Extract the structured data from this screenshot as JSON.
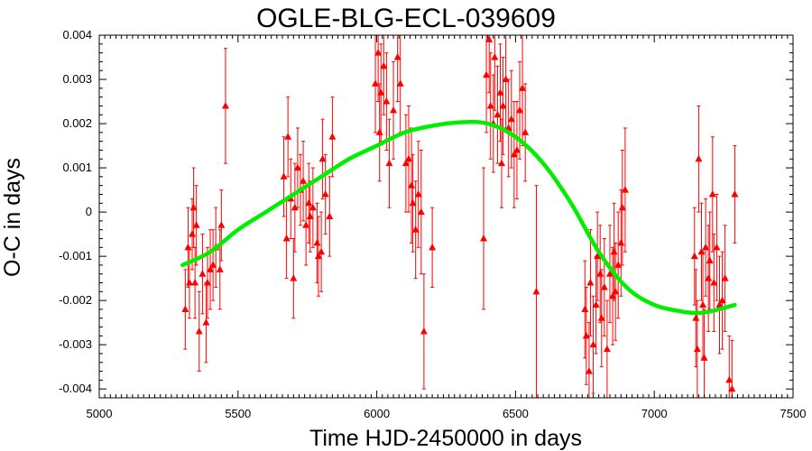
{
  "chart_data": {
    "type": "scatter",
    "title": "OGLE-BLG-ECL-039609",
    "xlabel": "Time HJD-2450000 in days",
    "ylabel": "O-C in days",
    "xlim": [
      5000,
      7500
    ],
    "ylim": [
      -0.0042,
      0.004
    ],
    "x_ticks": [
      5000,
      5500,
      6000,
      6500,
      7000,
      7500
    ],
    "y_ticks": [
      0.004,
      0.003,
      0.002,
      0.001,
      0,
      -0.001,
      -0.002,
      -0.003,
      -0.004
    ],
    "x_tick_labels": [
      "5000",
      "5500",
      "6000",
      "6500",
      "7000",
      "7500"
    ],
    "y_tick_labels": [
      "0.004",
      "0.003",
      "0.002",
      "0.001",
      "0",
      "-0.001",
      "-0.002",
      "-0.003",
      "-0.004"
    ],
    "grid": false,
    "colors": {
      "points": "#ff0000",
      "fit": "#00ee00",
      "axes": "#000000"
    },
    "series": [
      {
        "type": "scatter_errorbars",
        "points": [
          {
            "x": 5310,
            "y": -0.0022,
            "err": 0.0009
          },
          {
            "x": 5320,
            "y": -0.0008,
            "err": 0.0009
          },
          {
            "x": 5325,
            "y": -0.0016,
            "err": 0.0008
          },
          {
            "x": 5335,
            "y": -0.0005,
            "err": 0.0008
          },
          {
            "x": 5340,
            "y": 0.0001,
            "err": 0.0009
          },
          {
            "x": 5345,
            "y": -0.0016,
            "err": 0.0008
          },
          {
            "x": 5350,
            "y": -0.0003,
            "err": 0.0009
          },
          {
            "x": 5360,
            "y": -0.0027,
            "err": 0.0009
          },
          {
            "x": 5372,
            "y": -0.0014,
            "err": 0.0009
          },
          {
            "x": 5385,
            "y": -0.0025,
            "err": 0.0009
          },
          {
            "x": 5390,
            "y": -0.0016,
            "err": 0.0008
          },
          {
            "x": 5400,
            "y": -0.0013,
            "err": 0.0009
          },
          {
            "x": 5410,
            "y": -0.0012,
            "err": 0.0008
          },
          {
            "x": 5420,
            "y": -0.0008,
            "err": 0.0009
          },
          {
            "x": 5435,
            "y": -0.0013,
            "err": 0.0009
          },
          {
            "x": 5440,
            "y": -0.0003,
            "err": 0.0008
          },
          {
            "x": 5455,
            "y": 0.0024,
            "err": 0.0013
          },
          {
            "x": 5665,
            "y": 0.0008,
            "err": 0.0009
          },
          {
            "x": 5675,
            "y": -0.0006,
            "err": 0.0009
          },
          {
            "x": 5680,
            "y": 0.0017,
            "err": 0.0009
          },
          {
            "x": 5690,
            "y": 0.0003,
            "err": 0.0009
          },
          {
            "x": 5700,
            "y": -0.0015,
            "err": 0.0009
          },
          {
            "x": 5705,
            "y": 0.0001,
            "err": 0.001
          },
          {
            "x": 5715,
            "y": 0.001,
            "err": 0.0009
          },
          {
            "x": 5725,
            "y": 0.0005,
            "err": 0.0008
          },
          {
            "x": 5735,
            "y": 0.0007,
            "err": 0.0009
          },
          {
            "x": 5745,
            "y": -0.0003,
            "err": 0.0009
          },
          {
            "x": 5755,
            "y": 0.0002,
            "err": 0.0009
          },
          {
            "x": 5760,
            "y": -0.0001,
            "err": 0.0008
          },
          {
            "x": 5770,
            "y": 0.0001,
            "err": 0.0009
          },
          {
            "x": 5785,
            "y": -0.0007,
            "err": 0.0009
          },
          {
            "x": 5790,
            "y": -0.001,
            "err": 0.0009
          },
          {
            "x": 5800,
            "y": -0.0009,
            "err": 0.0009
          },
          {
            "x": 5805,
            "y": 0.0012,
            "err": 0.0009
          },
          {
            "x": 5815,
            "y": 0.0004,
            "err": 0.0009
          },
          {
            "x": 5830,
            "y": -0.0001,
            "err": 0.0009
          },
          {
            "x": 5840,
            "y": 0.0017,
            "err": 0.0009
          },
          {
            "x": 5995,
            "y": 0.0029,
            "err": 0.0011
          },
          {
            "x": 6005,
            "y": 0.0036,
            "err": 0.0011
          },
          {
            "x": 6010,
            "y": 0.0018,
            "err": 0.0011
          },
          {
            "x": 6015,
            "y": 0.0027,
            "err": 0.0011
          },
          {
            "x": 6025,
            "y": 0.0033,
            "err": 0.0011
          },
          {
            "x": 6035,
            "y": 0.0025,
            "err": 0.0011
          },
          {
            "x": 6045,
            "y": 0.0011,
            "err": 0.001
          },
          {
            "x": 6060,
            "y": 0.0023,
            "err": 0.0011
          },
          {
            "x": 6075,
            "y": 0.0035,
            "err": 0.001
          },
          {
            "x": 6085,
            "y": 0.0029,
            "err": 0.0011
          },
          {
            "x": 6105,
            "y": 0.0011,
            "err": 0.0011
          },
          {
            "x": 6115,
            "y": 0.0012,
            "err": 0.0012
          },
          {
            "x": 6125,
            "y": 0.0006,
            "err": 0.0013
          },
          {
            "x": 6130,
            "y": 0.0002,
            "err": 0.0011
          },
          {
            "x": 6140,
            "y": -0.0004,
            "err": 0.0011
          },
          {
            "x": 6150,
            "y": 0.0004,
            "err": 0.0012
          },
          {
            "x": 6160,
            "y": 0.0,
            "err": 0.0014
          },
          {
            "x": 6170,
            "y": -0.0027,
            "err": 0.0013
          },
          {
            "x": 6200,
            "y": -0.0008,
            "err": 0.0009
          },
          {
            "x": 6385,
            "y": -0.0006,
            "err": 0.0016
          },
          {
            "x": 6395,
            "y": 0.0031,
            "err": 0.0013
          },
          {
            "x": 6405,
            "y": 0.0039,
            "err": 0.0012
          },
          {
            "x": 6410,
            "y": 0.0024,
            "err": 0.0012
          },
          {
            "x": 6420,
            "y": 0.002,
            "err": 0.0011
          },
          {
            "x": 6425,
            "y": 0.0035,
            "err": 0.0012
          },
          {
            "x": 6435,
            "y": 0.0022,
            "err": 0.0011
          },
          {
            "x": 6445,
            "y": 0.0027,
            "err": 0.0011
          },
          {
            "x": 6450,
            "y": 0.0011,
            "err": 0.001
          },
          {
            "x": 6455,
            "y": 0.0024,
            "err": 0.0011
          },
          {
            "x": 6465,
            "y": 0.003,
            "err": 0.0011
          },
          {
            "x": 6475,
            "y": 0.0019,
            "err": 0.0011
          },
          {
            "x": 6485,
            "y": 0.0021,
            "err": 0.0011
          },
          {
            "x": 6495,
            "y": 0.0013,
            "err": 0.0012
          },
          {
            "x": 6505,
            "y": 0.0014,
            "err": 0.0011
          },
          {
            "x": 6515,
            "y": 0.0023,
            "err": 0.0011
          },
          {
            "x": 6525,
            "y": 0.0028,
            "err": 0.0013
          },
          {
            "x": 6535,
            "y": 0.0018,
            "err": 0.0011
          },
          {
            "x": 6575,
            "y": -0.0018,
            "err": 0.0024
          },
          {
            "x": 6750,
            "y": -0.0022,
            "err": 0.0011
          },
          {
            "x": 6755,
            "y": -0.0028,
            "err": 0.0011
          },
          {
            "x": 6765,
            "y": -0.0036,
            "err": 0.0011
          },
          {
            "x": 6770,
            "y": -0.0016,
            "err": 0.0012
          },
          {
            "x": 6780,
            "y": -0.003,
            "err": 0.0011
          },
          {
            "x": 6790,
            "y": -0.0021,
            "err": 0.0011
          },
          {
            "x": 6795,
            "y": -0.001,
            "err": 0.001
          },
          {
            "x": 6805,
            "y": -0.0014,
            "err": 0.0011
          },
          {
            "x": 6810,
            "y": -0.0024,
            "err": 0.0011
          },
          {
            "x": 6820,
            "y": -0.0017,
            "err": 0.0011
          },
          {
            "x": 6830,
            "y": -0.0031,
            "err": 0.0011
          },
          {
            "x": 6840,
            "y": -0.0014,
            "err": 0.0011
          },
          {
            "x": 6850,
            "y": -0.0019,
            "err": 0.0011
          },
          {
            "x": 6855,
            "y": -0.0009,
            "err": 0.0011
          },
          {
            "x": 6860,
            "y": -0.0018,
            "err": 0.0011
          },
          {
            "x": 6870,
            "y": -0.0012,
            "err": 0.0012
          },
          {
            "x": 6880,
            "y": -0.0007,
            "err": 0.0012
          },
          {
            "x": 6885,
            "y": 0.0001,
            "err": 0.0013
          },
          {
            "x": 6895,
            "y": 0.0005,
            "err": 0.0014
          },
          {
            "x": 7145,
            "y": -0.001,
            "err": 0.0011
          },
          {
            "x": 7150,
            "y": -0.0024,
            "err": 0.0011
          },
          {
            "x": 7155,
            "y": -0.0031,
            "err": 0.0011
          },
          {
            "x": 7160,
            "y": 0.0012,
            "err": 0.0012
          },
          {
            "x": 7170,
            "y": -0.0009,
            "err": 0.0011
          },
          {
            "x": 7175,
            "y": -0.0021,
            "err": 0.0012
          },
          {
            "x": 7180,
            "y": -0.0033,
            "err": 0.0011
          },
          {
            "x": 7185,
            "y": -0.0008,
            "err": 0.0011
          },
          {
            "x": 7195,
            "y": -0.0015,
            "err": 0.0012
          },
          {
            "x": 7200,
            "y": -0.0011,
            "err": 0.0011
          },
          {
            "x": 7210,
            "y": 0.0004,
            "err": 0.0013
          },
          {
            "x": 7215,
            "y": -0.0016,
            "err": 0.0011
          },
          {
            "x": 7225,
            "y": -0.0008,
            "err": 0.0012
          },
          {
            "x": 7235,
            "y": -0.0021,
            "err": 0.0011
          },
          {
            "x": 7245,
            "y": -0.002,
            "err": 0.0011
          },
          {
            "x": 7255,
            "y": -0.0015,
            "err": 0.0012
          },
          {
            "x": 7270,
            "y": -0.0038,
            "err": 0.001
          },
          {
            "x": 7280,
            "y": -0.004,
            "err": 0.0011
          },
          {
            "x": 7290,
            "y": 0.0004,
            "err": 0.0011
          }
        ]
      },
      {
        "type": "line",
        "points": [
          {
            "x": 5300,
            "y": -0.0012
          },
          {
            "x": 5400,
            "y": -0.0009
          },
          {
            "x": 5500,
            "y": -0.0004
          },
          {
            "x": 5600,
            "y": 0.0
          },
          {
            "x": 5700,
            "y": 0.0004
          },
          {
            "x": 5800,
            "y": 0.0008
          },
          {
            "x": 5900,
            "y": 0.0012
          },
          {
            "x": 6000,
            "y": 0.0015
          },
          {
            "x": 6100,
            "y": 0.0018
          },
          {
            "x": 6200,
            "y": 0.00195
          },
          {
            "x": 6300,
            "y": 0.00203
          },
          {
            "x": 6400,
            "y": 0.002
          },
          {
            "x": 6500,
            "y": 0.0017
          },
          {
            "x": 6600,
            "y": 0.0011
          },
          {
            "x": 6700,
            "y": 0.0002
          },
          {
            "x": 6800,
            "y": -0.0009
          },
          {
            "x": 6900,
            "y": -0.0017
          },
          {
            "x": 7000,
            "y": -0.0021
          },
          {
            "x": 7100,
            "y": -0.00225
          },
          {
            "x": 7150,
            "y": -0.00228
          },
          {
            "x": 7200,
            "y": -0.00225
          },
          {
            "x": 7290,
            "y": -0.0021
          }
        ]
      }
    ]
  }
}
